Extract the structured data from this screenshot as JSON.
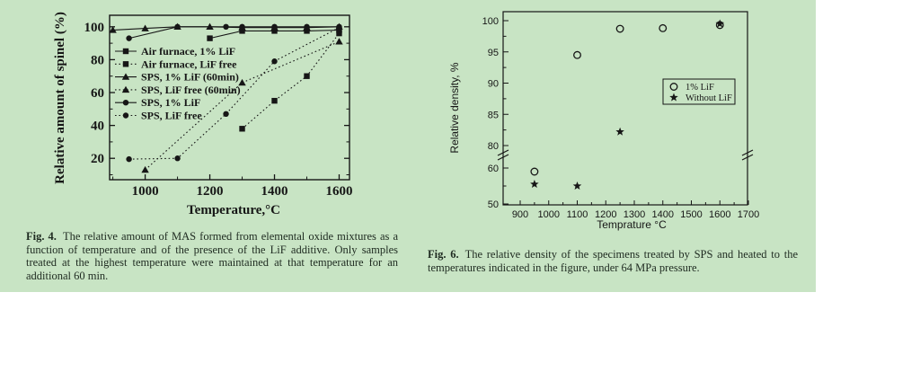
{
  "page": {
    "panel_color": "#c8e4c4",
    "background": "#ffffff",
    "ink": "#161616",
    "caption_ink": "#1e2a20"
  },
  "captions": {
    "fig4_label": "Fig. 4.",
    "fig4_text": "The relative amount of MAS formed from elemental oxide mixtures as a function of temperature and of the presence of the LiF additive. Only samples treated at the highest temperature were maintained at that temperature for an additional 60 min.",
    "fig6_label": "Fig. 6.",
    "fig6_text": "The relative density of the specimens treated by SPS and heated to the temperatures indicated in the figure, under 64 MPa pressure."
  },
  "chart_data": [
    {
      "id": "fig4",
      "type": "line",
      "title": "",
      "xlabel": "Temperature,°C",
      "ylabel": "Relative amount of spinel (%)",
      "xlim": [
        890,
        1632
      ],
      "ylim": [
        7,
        107
      ],
      "xticks_major": [
        1000,
        1200,
        1400,
        1600
      ],
      "xticks_minor": [
        900,
        1100,
        1300,
        1500
      ],
      "yticks_major": [
        20,
        40,
        60,
        80,
        100
      ],
      "yticks_minor": [
        10,
        30,
        50,
        70,
        90
      ],
      "grid": false,
      "legend_position": "upper-left-inside",
      "series": [
        {
          "name": "Air furnace, 1% LiF",
          "marker": "square",
          "line": "solid",
          "points": [
            [
              1200,
              93
            ],
            [
              1300,
              97.5
            ],
            [
              1400,
              97.5
            ],
            [
              1500,
              97.5
            ],
            [
              1600,
              98
            ]
          ]
        },
        {
          "name": "Air furnace, LiF free",
          "marker": "square",
          "line": "dotted",
          "points": [
            [
              1300,
              38
            ],
            [
              1400,
              55
            ],
            [
              1500,
              70
            ],
            [
              1600,
              96
            ]
          ]
        },
        {
          "name": "SPS, 1% LiF (60min)",
          "marker": "triangle",
          "line": "solid",
          "points": [
            [
              900,
              98
            ],
            [
              1000,
              99
            ],
            [
              1100,
              100
            ],
            [
              1200,
              100
            ],
            [
              1300,
              99.5
            ],
            [
              1400,
              99.5
            ],
            [
              1500,
              99.5
            ],
            [
              1600,
              100
            ]
          ]
        },
        {
          "name": "SPS, LiF free (60min)",
          "marker": "triangle",
          "line": "dotted",
          "points": [
            [
              1000,
              13
            ],
            [
              1300,
              66
            ],
            [
              1600,
              91
            ]
          ]
        },
        {
          "name": "SPS, 1% LiF",
          "marker": "circle",
          "line": "solid",
          "points": [
            [
              950,
              93
            ],
            [
              1100,
              100
            ],
            [
              1250,
              100
            ],
            [
              1300,
              100
            ],
            [
              1400,
              100
            ],
            [
              1500,
              100
            ],
            [
              1600,
              100
            ]
          ]
        },
        {
          "name": "SPS, LiF free",
          "marker": "circle",
          "line": "dotted",
          "points": [
            [
              950,
              19.5
            ],
            [
              1100,
              20
            ],
            [
              1250,
              47
            ],
            [
              1400,
              79
            ],
            [
              1600,
              99.5
            ]
          ]
        }
      ]
    },
    {
      "id": "fig6",
      "type": "scatter",
      "title": "",
      "xlabel": "Temprature °C",
      "ylabel": "Relative density, %",
      "xlim": [
        840,
        1700
      ],
      "xticks_major": [
        900,
        1000,
        1100,
        1200,
        1300,
        1400,
        1500,
        1600,
        1700
      ],
      "xticks_minor_step": 50,
      "y_axis_break": {
        "upper_range": [
          80,
          100
        ],
        "lower_range": [
          50,
          60
        ]
      },
      "yticks_upper_major": [
        80,
        85,
        90,
        95,
        100
      ],
      "yticks_upper_minor": [
        82.5,
        87.5,
        92.5,
        97.5
      ],
      "yticks_lower_major": [
        50,
        60
      ],
      "yticks_lower_minor": [
        55
      ],
      "grid": false,
      "legend_position": "middle-right-inside",
      "series": [
        {
          "name": "1% LiF",
          "marker": "open-circle",
          "points": [
            [
              950,
              59
            ],
            [
              1100,
              94.5
            ],
            [
              1250,
              98.7
            ],
            [
              1400,
              98.8
            ],
            [
              1600,
              99.3
            ]
          ]
        },
        {
          "name": "Without LiF",
          "marker": "star",
          "points": [
            [
              950,
              55.5
            ],
            [
              1100,
              55
            ],
            [
              1250,
              82.2
            ],
            [
              1600,
              99.5
            ]
          ]
        }
      ]
    }
  ]
}
